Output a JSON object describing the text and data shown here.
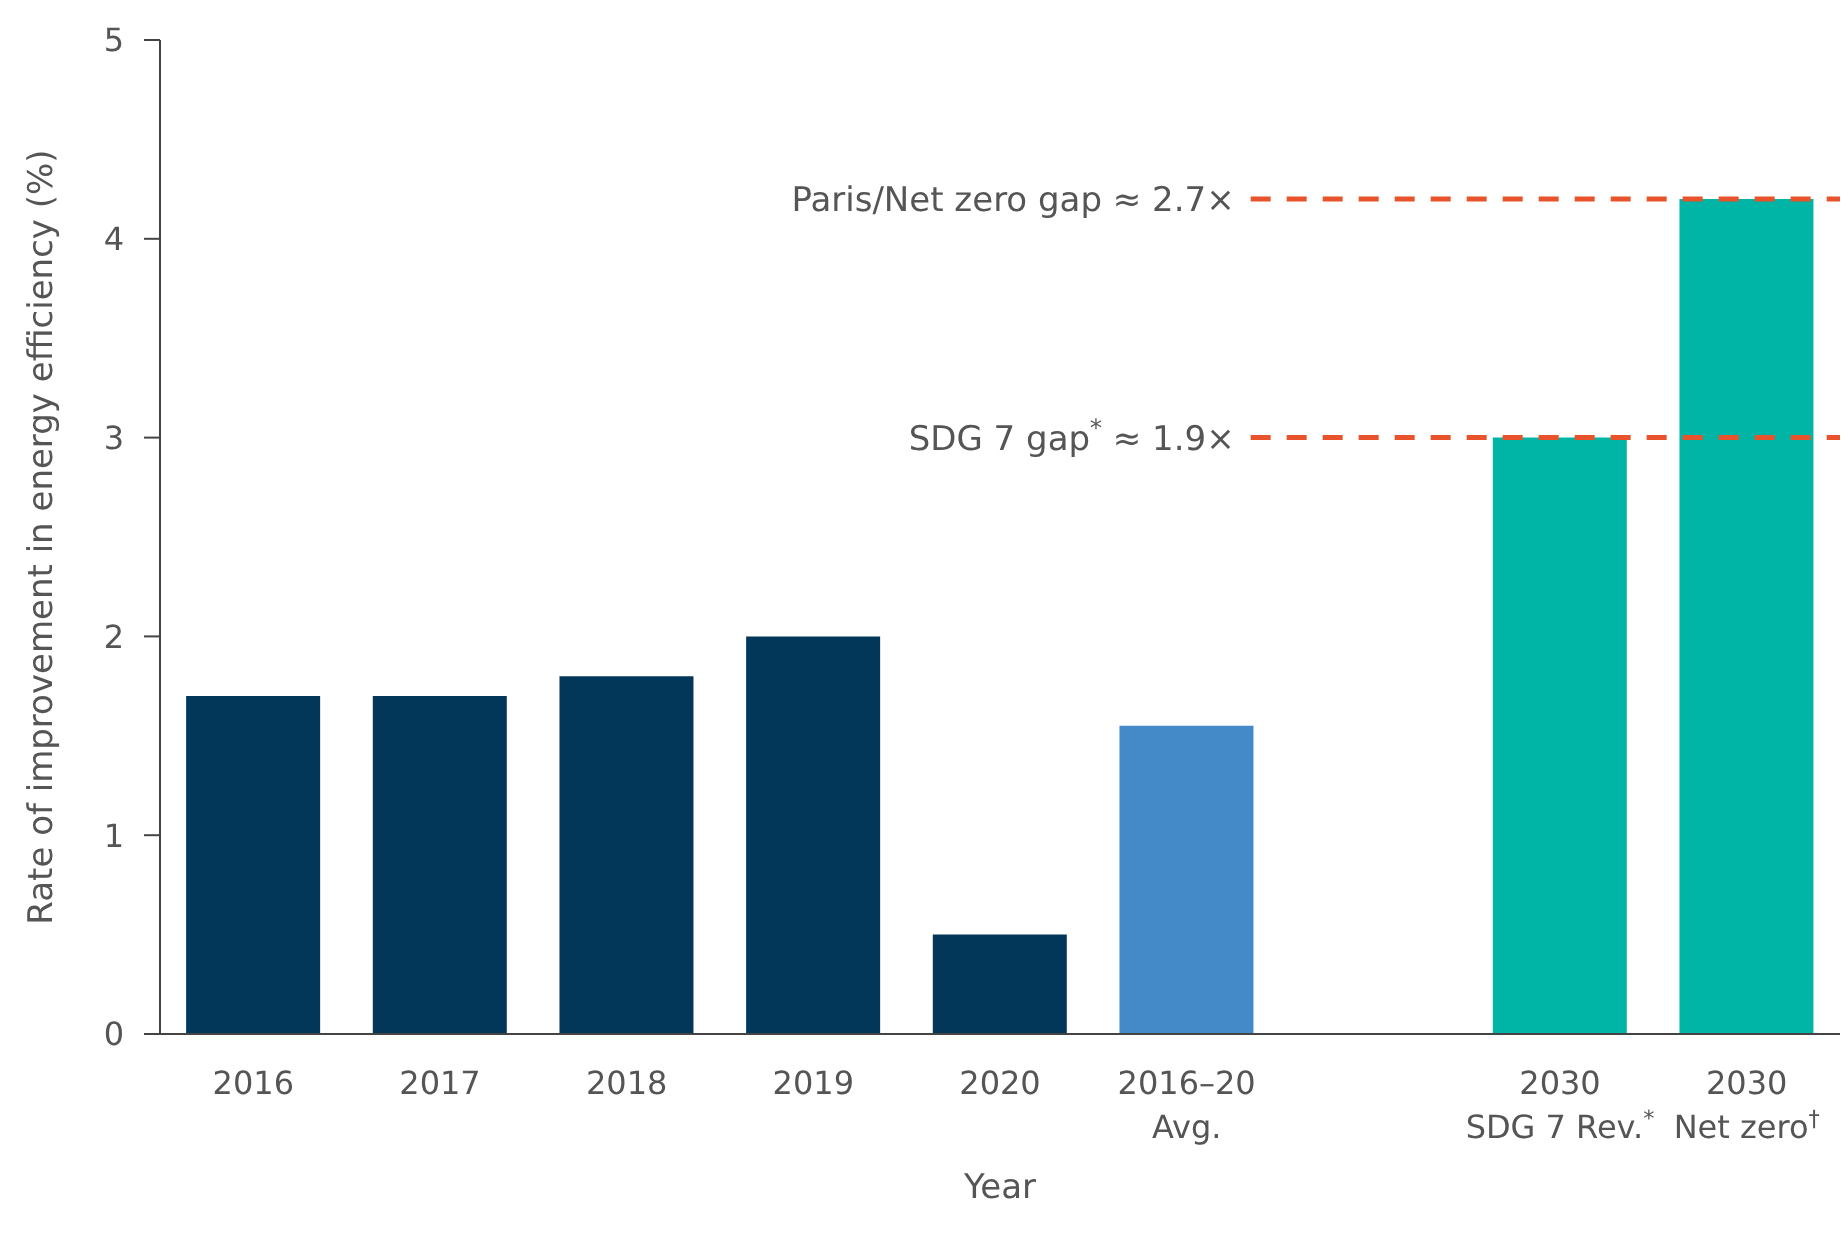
{
  "chart_data": {
    "type": "bar",
    "categories": [
      "2016",
      "2017",
      "2018",
      "2019",
      "2020",
      "2016–20\nAvg.",
      null,
      "2030\nSDG 7 Rev.$^{*}$",
      "2030\nNet zero$^{†}$"
    ],
    "values": [
      1.7,
      1.7,
      1.8,
      2.0,
      0.5,
      1.55,
      null,
      3.0,
      4.2
    ],
    "colors": [
      "#02375a",
      "#02375a",
      "#02375a",
      "#02375a",
      "#02375a",
      "#4489c8",
      "#02375a",
      "#00b5a5",
      "#00b5a5"
    ],
    "xlabel": "Year",
    "ylabel": "Rate of improvement in energy efficiency (%)",
    "ylim": [
      0,
      5
    ],
    "yticks": [
      0,
      1,
      2,
      3,
      4,
      5
    ],
    "grid": false,
    "legend": false,
    "ref_lines": [
      {
        "axis": "y",
        "value": 3,
        "label": "SDG 7 gap$^{*}$ ≈ 1.9×",
        "color": "#e8532b",
        "line_style": "dashed"
      },
      {
        "axis": "y",
        "value": 4.2,
        "label": "Paris/Net zero gap ≈ 2.7×",
        "color": "#e8532b",
        "line_style": "dashed"
      }
    ]
  }
}
